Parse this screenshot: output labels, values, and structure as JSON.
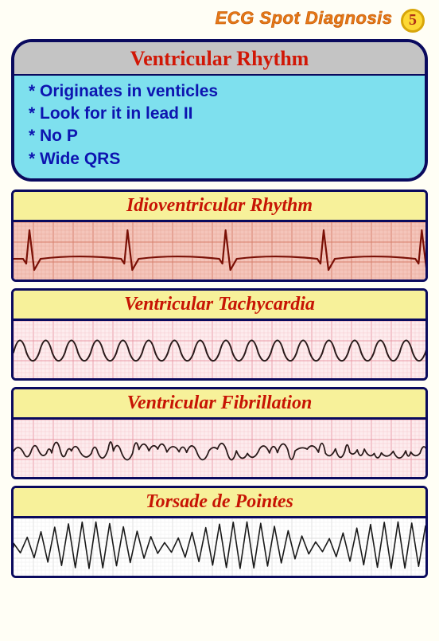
{
  "header": {
    "title": "ECG Spot Diagnosis",
    "badge": "5",
    "title_color": "#e67817",
    "badge_bg": "#fdd835",
    "badge_border": "#d8a60a",
    "badge_text_color": "#b03018"
  },
  "intro": {
    "title": "Ventricular Rhythm",
    "title_color": "#d11706",
    "title_bg": "#c4c4c4",
    "body_bg": "#7ee0ee",
    "border_color": "#0a0a5e",
    "bullet_color": "#0d14b0",
    "bullets": [
      "* Originates in venticles",
      "* Look for it in lead II",
      "* No P",
      "* Wide QRS"
    ]
  },
  "rhythms": [
    {
      "title": "Idioventricular Rhythm",
      "strip_bg": "#f4c5bb",
      "grid_minor": "#e8a89a",
      "grid_major": "#d67d6a",
      "trace_color": "#7a1006",
      "trace_width": 2.2,
      "waveform": "idioventricular"
    },
    {
      "title": "Ventricular Tachycardia",
      "strip_bg": "#fdecee",
      "grid_minor": "#f5c9cf",
      "grid_major": "#e99aa5",
      "trace_color": "#2a1a1a",
      "trace_width": 2.0,
      "waveform": "vtach"
    },
    {
      "title": "Ventricular Fibrillation",
      "strip_bg": "#fdecee",
      "grid_minor": "#f5c9cf",
      "grid_major": "#e99aa5",
      "trace_color": "#2a1a1a",
      "trace_width": 1.8,
      "waveform": "vfib"
    },
    {
      "title": "Torsade de Pointes",
      "strip_bg": "#ffffff",
      "grid_minor": "#eeeeee",
      "grid_major": "#dddddd",
      "trace_color": "#1a1a1a",
      "trace_width": 1.6,
      "waveform": "torsade"
    }
  ],
  "style": {
    "page_bg": "#fffef5",
    "block_border": "#0a0a5e",
    "block_title_bg": "#f7f19a",
    "block_title_color": "#c71404"
  }
}
